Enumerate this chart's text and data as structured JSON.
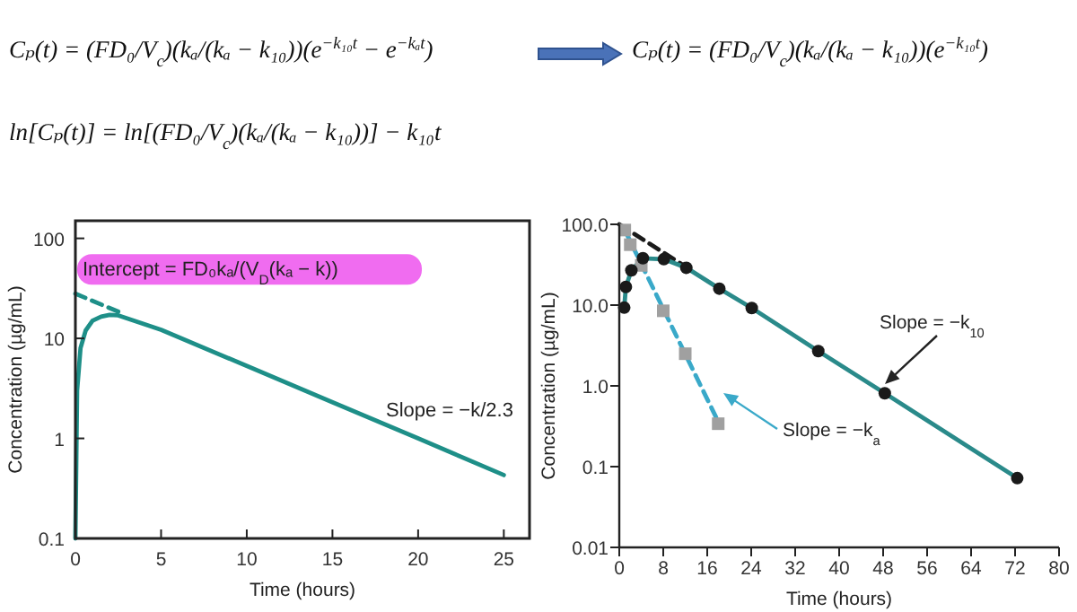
{
  "chart_data": [
    {
      "type": "other",
      "annotations": [
        "Cₚ(t) = (FD₀/V$_{c}$)(kₐ/(kₐ − k₁₀))(e$^{−k₁₀t}$ − e$^{−kₐt}$)",
        "Cₚ(t) = (FD₀/V$_{c}$)(kₐ/(kₐ − k₁₀))(e$^{−k₁₀t}$)",
        "ln[Cₚ(t)] = ln[(FD₀/V$_{c}$)(kₐ/(kₐ − k₁₀))] − k₁₀t"
      ]
    },
    {
      "type": "line",
      "xlabel": "Time (hours)",
      "ylabel": "Concentration (µg/mL)",
      "log": "y",
      "xlim": [
        0,
        26.5
      ],
      "xticks": [
        0,
        5,
        10,
        15,
        20,
        25
      ],
      "ylim": [
        0.1,
        150
      ],
      "yticks": [
        0.1,
        1,
        10,
        100
      ],
      "series": [
        {
          "type": "line",
          "color": "#1e8f88",
          "line_style": "solid",
          "x": [
            0,
            0.1,
            0.3,
            0.6,
            1,
            1.5,
            2,
            2.5,
            5,
            10,
            15,
            20,
            25
          ],
          "values": [
            0.1,
            3,
            8,
            12,
            15,
            16.5,
            17.2,
            17,
            12.2,
            5.3,
            2.3,
            1.0,
            0.43
          ]
        },
        {
          "type": "line",
          "color": "#1e8f88",
          "line_style": "dashed",
          "x": [
            0,
            2.5
          ],
          "values": [
            28,
            18.5
          ]
        }
      ],
      "annotations": [
        {
          "text": "Intercept = FD₀kₐ/(V$_{D}$(kₐ − k))",
          "x": 0,
          "y": 28
        },
        "Slope = −k/2.3"
      ]
    },
    {
      "type": "line",
      "xlabel": "Time (hours)",
      "ylabel": "Concentration (µg/mL)",
      "log": "y",
      "xlim": [
        0,
        80
      ],
      "xticks": [
        0,
        8,
        16,
        24,
        32,
        40,
        48,
        56,
        64,
        72,
        80
      ],
      "ylim": [
        0.01,
        100
      ],
      "yticks": [
        {
          "value": 0.01,
          "label": "0.01"
        },
        {
          "value": 0.1,
          "label": "0.1"
        },
        {
          "value": 1,
          "label": "1.0"
        },
        {
          "value": 10,
          "label": "10.0"
        },
        {
          "value": 100,
          "label": "100.0"
        }
      ],
      "series": [
        {
          "type": "line",
          "color": "#1a1a1a",
          "line_style": "dashed",
          "x": [
            0,
            12
          ],
          "values": [
            100,
            30
          ]
        },
        {
          "type": "line",
          "color": "#3aa9c9",
          "line_style": "dashed",
          "x": [
            1,
            18
          ],
          "values": [
            85,
            0.36
          ]
        },
        {
          "type": "line",
          "color": "#2a8a8a",
          "line_style": "solid",
          "x": [
            0.9,
            1.2,
            2.2,
            4.3,
            8.1,
            12.2,
            18.2,
            24.1,
            36.2,
            48.3,
            72.4
          ],
          "values": [
            9.3,
            16.8,
            27,
            38,
            37,
            29,
            16,
            9.2,
            2.7,
            0.81,
            0.072
          ]
        },
        {
          "type": "scatter",
          "color": "#a0a0a0",
          "marker": "square",
          "x": [
            1,
            2,
            4,
            8,
            12,
            18
          ],
          "values": [
            85,
            56,
            31,
            8.5,
            2.5,
            0.34
          ]
        },
        {
          "type": "scatter",
          "color": "#1a1a1a",
          "marker": "circle",
          "x": [
            0.9,
            1.2,
            2.2,
            4.3,
            8.1,
            12.2,
            18.2,
            24.1,
            36.2,
            48.3,
            72.4
          ],
          "values": [
            9.3,
            16.8,
            27,
            38,
            37,
            29,
            16,
            9.2,
            2.7,
            0.81,
            0.072
          ]
        }
      ],
      "annotations": [
        "Slope = −k$_{10}$",
        "Slope = −k$_{a}$"
      ]
    }
  ]
}
